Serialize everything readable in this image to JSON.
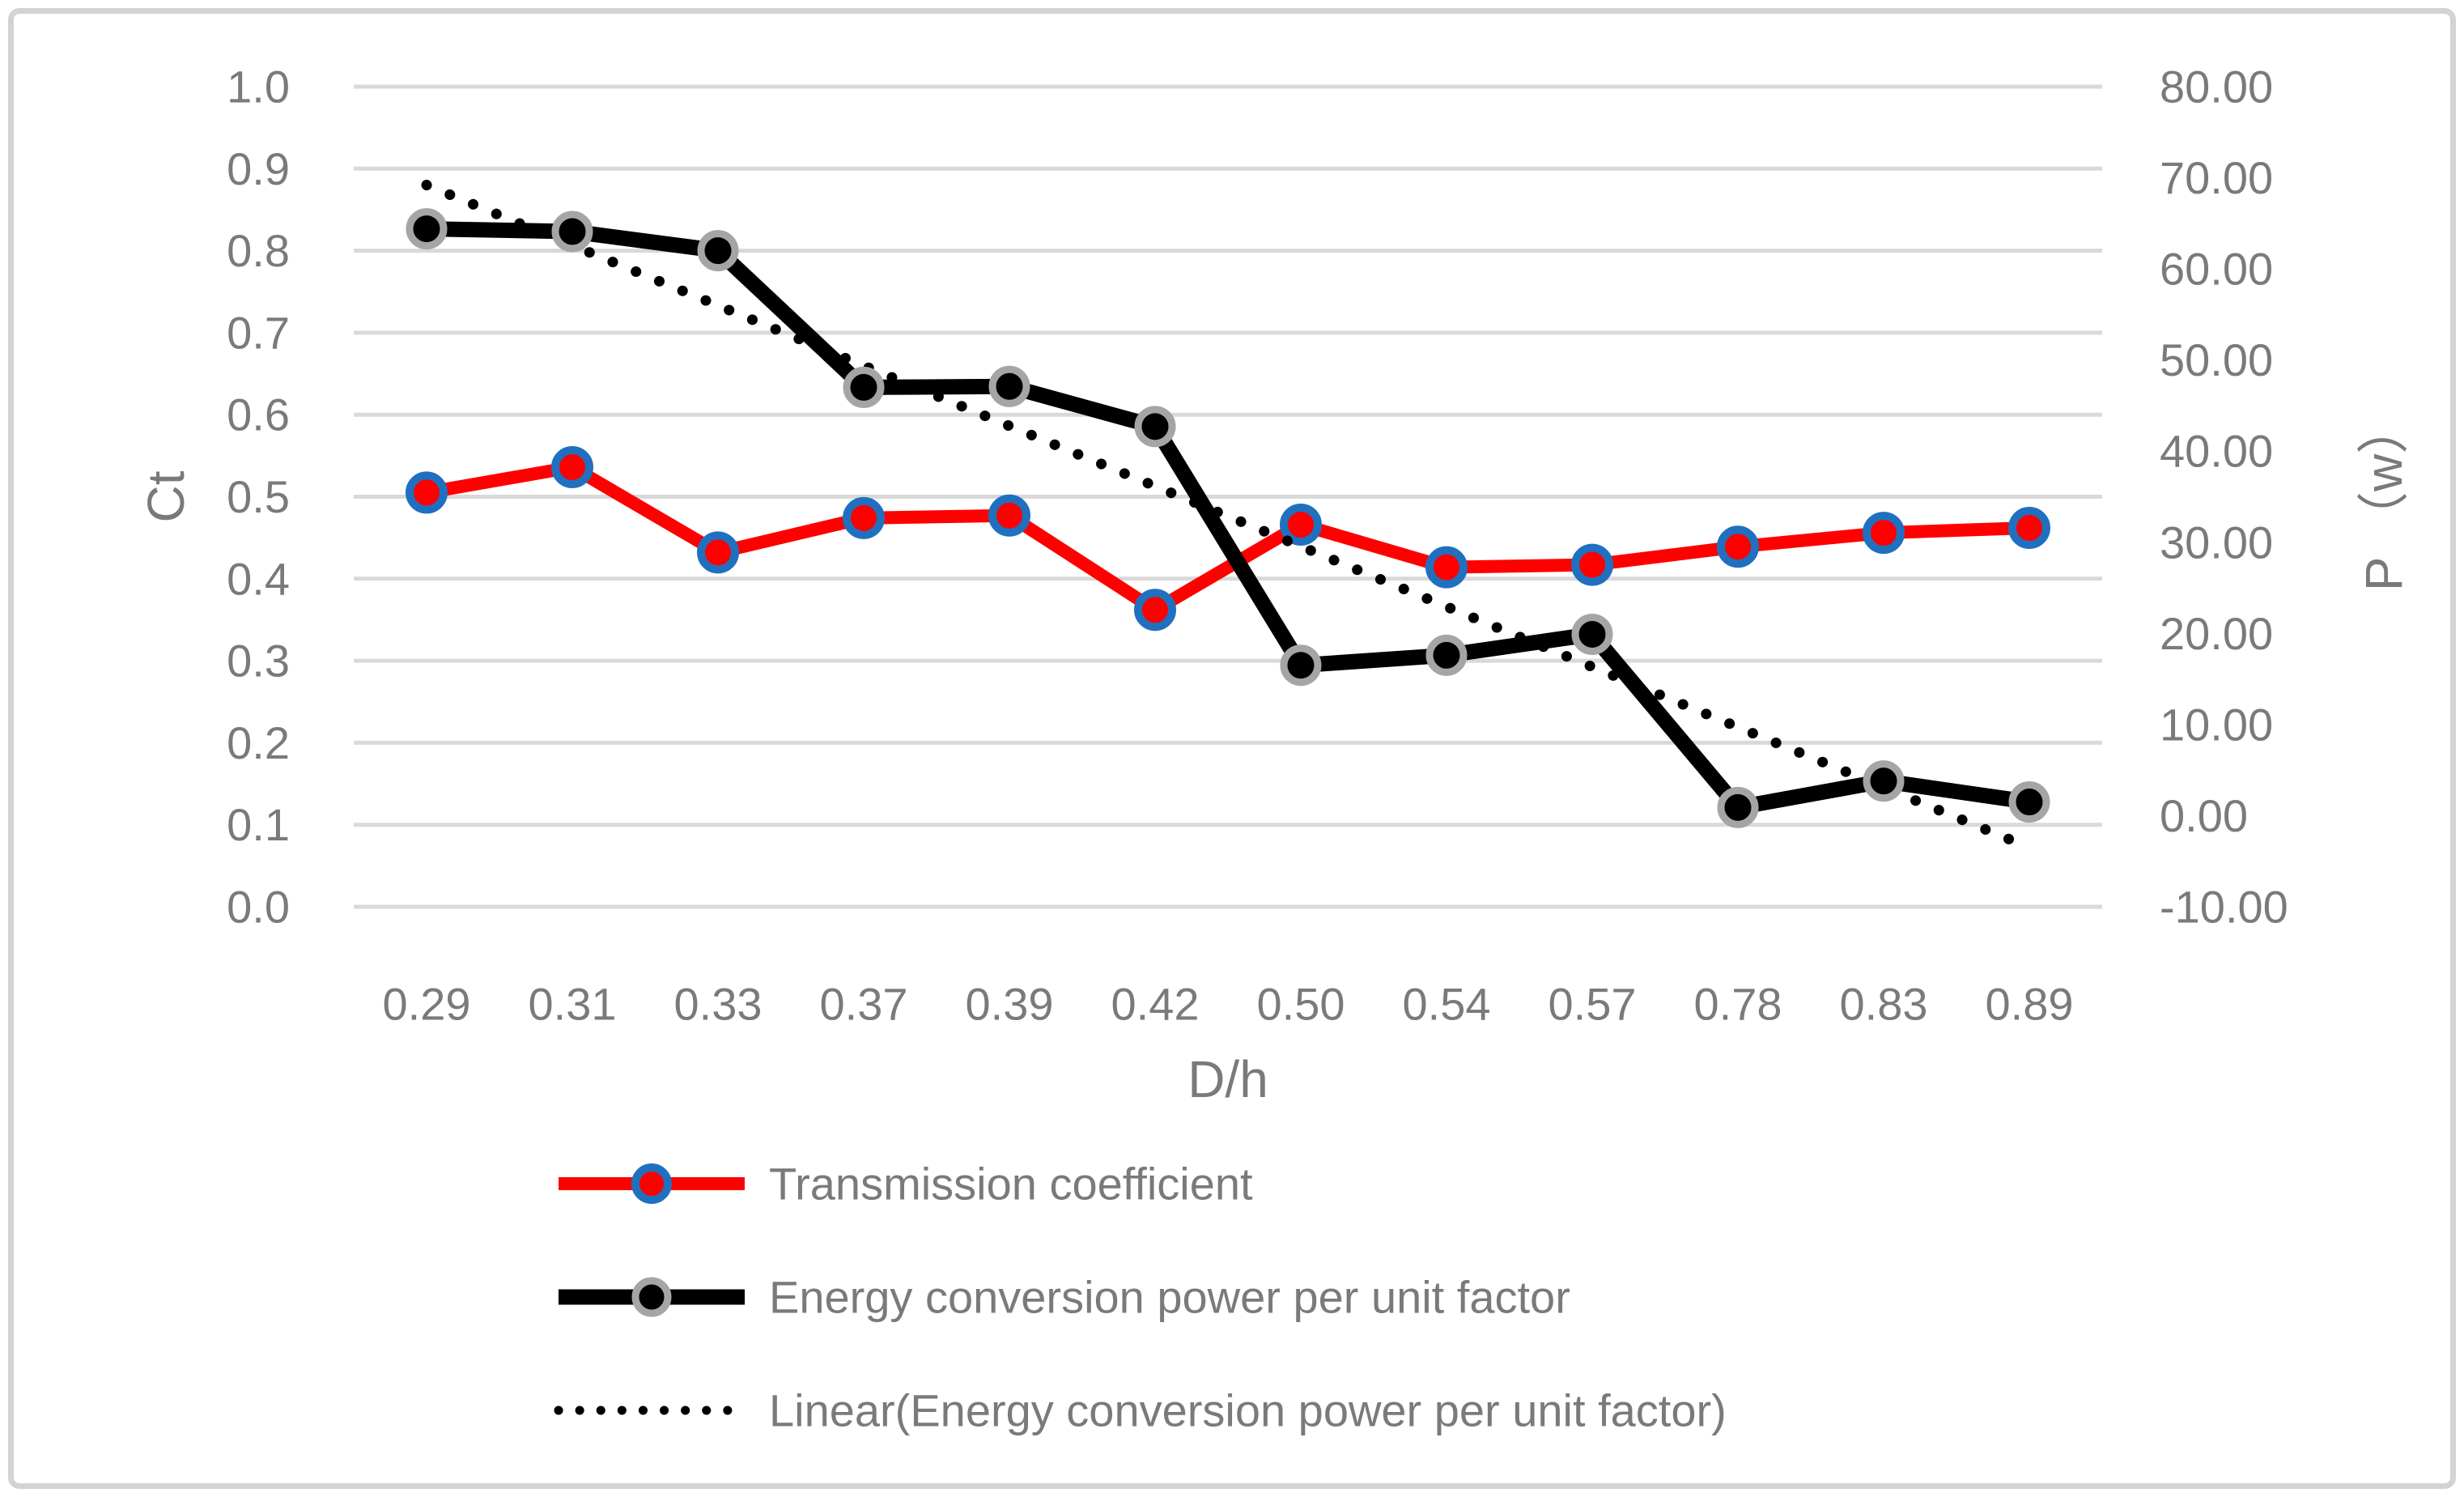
{
  "chart_data": {
    "type": "line",
    "title": "",
    "xlabel": "D/h",
    "ylabel_left": "Ct",
    "ylabel_right": "P （w）",
    "categories": [
      "0.29",
      "0.31",
      "0.33",
      "0.37",
      "0.39",
      "0.42",
      "0.50",
      "0.54",
      "0.57",
      "0.78",
      "0.83",
      "0.89"
    ],
    "left_axis": {
      "min": 0.0,
      "max": 1.0,
      "step": 0.1,
      "ticks": [
        "1.0",
        "0.9",
        "0.8",
        "0.7",
        "0.6",
        "0.5",
        "0.4",
        "0.3",
        "0.2",
        "0.1",
        "0.0"
      ]
    },
    "right_axis": {
      "min": -10,
      "max": 80,
      "step": 10,
      "ticks": [
        "80.00",
        "70.00",
        "60.00",
        "50.00",
        "40.00",
        "30.00",
        "20.00",
        "10.00",
        "0.00",
        "-10.00"
      ]
    },
    "grid": true,
    "legend_position": "bottom-left",
    "series": [
      {
        "name": "Transmission coefficient",
        "axis": "left",
        "style": "line-markers",
        "line_color": "#ff0000",
        "marker_fill": "#ff0000",
        "marker_border": "#2070c0",
        "values": [
          0.505,
          0.536,
          0.432,
          0.474,
          0.477,
          0.362,
          0.466,
          0.414,
          0.417,
          0.439,
          0.456,
          0.462
        ]
      },
      {
        "name": "Energy conversion power per unit factor",
        "axis": "right",
        "style": "line-markers",
        "line_color": "#000000",
        "marker_fill": "#000000",
        "marker_border": "#a5a5a5",
        "values": [
          64.4,
          64.1,
          62.0,
          47.0,
          47.1,
          42.7,
          16.5,
          17.6,
          19.9,
          0.9,
          3.8,
          1.5
        ]
      },
      {
        "name": "Linear(Energy conversion power per unit factor)",
        "axis": "right",
        "style": "dotted-trendline",
        "line_color": "#000000",
        "trend_start": 69.2,
        "trend_end": -3.5
      }
    ]
  },
  "colors": {
    "background": "#ffffff",
    "gridline": "#d9d9d9",
    "axis_text": "#7a7a7a",
    "frame_border": "#d3d3d3"
  }
}
